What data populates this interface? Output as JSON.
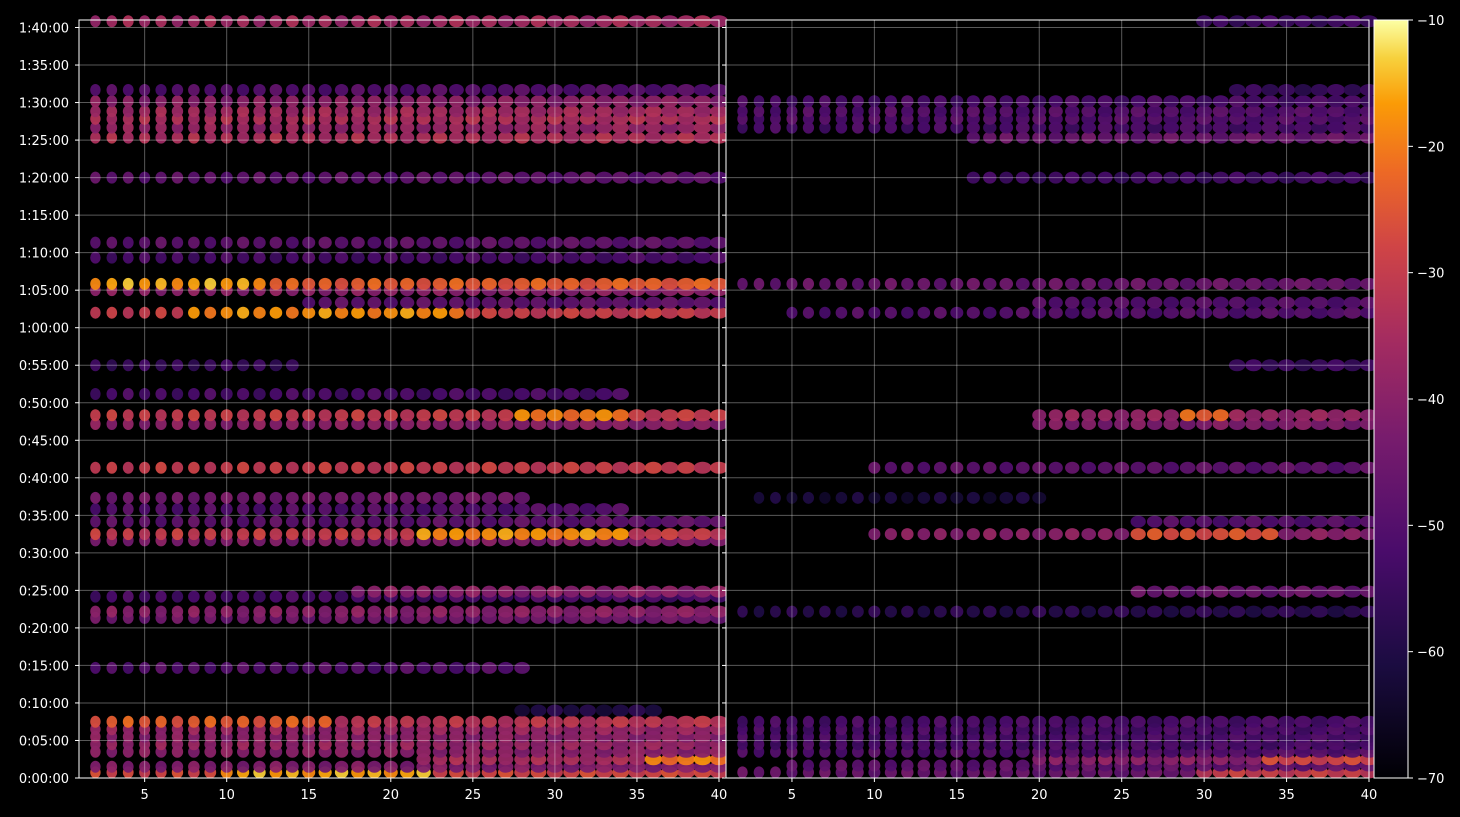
{
  "chart_data": [
    {
      "type": "heatmap",
      "panel": "left",
      "xlim": [
        1,
        40
      ],
      "ylim_seconds": [
        0,
        6060
      ],
      "x_ticks": [
        5,
        10,
        15,
        20,
        25,
        30,
        35,
        40
      ],
      "y_ticks": [
        "0:00:00",
        "0:05:00",
        "0:10:00",
        "0:15:00",
        "0:20:00",
        "0:25:00",
        "0:30:00",
        "0:35:00",
        "0:40:00",
        "0:45:00",
        "0:50:00",
        "0:55:00",
        "1:00:00",
        "1:05:00",
        "1:10:00",
        "1:15:00",
        "1:20:00",
        "1:25:00",
        "1:30:00",
        "1:35:00",
        "1:40:00"
      ],
      "grid": true,
      "colormap": "inferno",
      "note": "rows: time in seconds; x ranges in data units; level in dB",
      "rows": [
        {
          "t": 45,
          "x": [
            2,
            40
          ],
          "level": -28,
          "peak": -16,
          "peak_x": [
            10,
            22
          ]
        },
        {
          "t": 90,
          "x": [
            2,
            40
          ],
          "level": -42
        },
        {
          "t": 150,
          "x": [
            22,
            40
          ],
          "level": -35,
          "peak": -20,
          "peak_x": [
            36,
            40
          ]
        },
        {
          "t": 210,
          "x": [
            2,
            40
          ],
          "level": -40
        },
        {
          "t": 270,
          "x": [
            2,
            40
          ],
          "level": -38
        },
        {
          "t": 330,
          "x": [
            2,
            40
          ],
          "level": -40
        },
        {
          "t": 390,
          "x": [
            2,
            40
          ],
          "level": -38
        },
        {
          "t": 450,
          "x": [
            2,
            40
          ],
          "level": -32,
          "peak": -24,
          "peak_x": [
            2,
            16
          ]
        },
        {
          "t": 540,
          "x": [
            28,
            36
          ],
          "level": -60
        },
        {
          "t": 880,
          "x": [
            2,
            28
          ],
          "level": -50
        },
        {
          "t": 1280,
          "x": [
            2,
            40
          ],
          "level": -45
        },
        {
          "t": 1330,
          "x": [
            2,
            40
          ],
          "level": -40
        },
        {
          "t": 1450,
          "x": [
            2,
            40
          ],
          "level": -52
        },
        {
          "t": 1490,
          "x": [
            18,
            40
          ],
          "level": -40
        },
        {
          "t": 1900,
          "x": [
            2,
            40
          ],
          "level": -42
        },
        {
          "t": 1950,
          "x": [
            2,
            40
          ],
          "level": -30,
          "peak": -18,
          "peak_x": [
            22,
            34
          ]
        },
        {
          "t": 2050,
          "x": [
            2,
            40
          ],
          "level": -48
        },
        {
          "t": 2150,
          "x": [
            2,
            34
          ],
          "level": -50
        },
        {
          "t": 2240,
          "x": [
            2,
            28
          ],
          "level": -44
        },
        {
          "t": 2480,
          "x": [
            2,
            40
          ],
          "level": -30
        },
        {
          "t": 2830,
          "x": [
            2,
            40
          ],
          "level": -40
        },
        {
          "t": 2900,
          "x": [
            2,
            40
          ],
          "level": -30,
          "peak": -20,
          "peak_x": [
            28,
            34
          ]
        },
        {
          "t": 3070,
          "x": [
            2,
            34
          ],
          "level": -52
        },
        {
          "t": 3300,
          "x": [
            2,
            14
          ],
          "level": -55
        },
        {
          "t": 3720,
          "x": [
            2,
            40
          ],
          "level": -30,
          "peak": -18,
          "peak_x": [
            8,
            24
          ]
        },
        {
          "t": 3800,
          "x": [
            15,
            40
          ],
          "level": -48
        },
        {
          "t": 3900,
          "x": [
            2,
            40
          ],
          "level": -40
        },
        {
          "t": 3950,
          "x": [
            2,
            40
          ],
          "level": -24,
          "peak": -16,
          "peak_x": [
            2,
            12
          ]
        },
        {
          "t": 4160,
          "x": [
            2,
            40
          ],
          "level": -52
        },
        {
          "t": 4280,
          "x": [
            2,
            40
          ],
          "level": -48
        },
        {
          "t": 4800,
          "x": [
            2,
            40
          ],
          "level": -48
        },
        {
          "t": 5120,
          "x": [
            2,
            40
          ],
          "level": -34
        },
        {
          "t": 5200,
          "x": [
            2,
            40
          ],
          "level": -38
        },
        {
          "t": 5270,
          "x": [
            2,
            40
          ],
          "level": -34
        },
        {
          "t": 5330,
          "x": [
            2,
            40
          ],
          "level": -36
        },
        {
          "t": 5410,
          "x": [
            2,
            40
          ],
          "level": -40
        },
        {
          "t": 5500,
          "x": [
            2,
            40
          ],
          "level": -50
        },
        {
          "t": 6050,
          "x": [
            2,
            40
          ],
          "level": -36
        }
      ]
    },
    {
      "type": "heatmap",
      "panel": "right",
      "xlim": [
        1,
        40
      ],
      "ylim_seconds": [
        0,
        6060
      ],
      "x_ticks": [
        5,
        10,
        15,
        20,
        25,
        30,
        35,
        40
      ],
      "grid": true,
      "colormap": "inferno",
      "rows": [
        {
          "t": 45,
          "x": [
            2,
            40
          ],
          "level": -46,
          "peak": -30,
          "peak_x": [
            30,
            40
          ]
        },
        {
          "t": 100,
          "x": [
            5,
            40
          ],
          "level": -48
        },
        {
          "t": 150,
          "x": [
            20,
            40
          ],
          "level": -40,
          "peak": -28,
          "peak_x": [
            34,
            40
          ]
        },
        {
          "t": 210,
          "x": [
            2,
            40
          ],
          "level": -50
        },
        {
          "t": 270,
          "x": [
            2,
            40
          ],
          "level": -52
        },
        {
          "t": 330,
          "x": [
            2,
            40
          ],
          "level": -52
        },
        {
          "t": 390,
          "x": [
            2,
            40
          ],
          "level": -52
        },
        {
          "t": 450,
          "x": [
            2,
            40
          ],
          "level": -52
        },
        {
          "t": 1330,
          "x": [
            2,
            40
          ],
          "level": -58
        },
        {
          "t": 1490,
          "x": [
            26,
            40
          ],
          "level": -46
        },
        {
          "t": 1950,
          "x": [
            10,
            40
          ],
          "level": -40,
          "peak": -26,
          "peak_x": [
            26,
            34
          ]
        },
        {
          "t": 2050,
          "x": [
            26,
            40
          ],
          "level": -50
        },
        {
          "t": 2240,
          "x": [
            3,
            20
          ],
          "level": -62
        },
        {
          "t": 2480,
          "x": [
            10,
            40
          ],
          "level": -48
        },
        {
          "t": 2830,
          "x": [
            20,
            40
          ],
          "level": -42
        },
        {
          "t": 2900,
          "x": [
            20,
            40
          ],
          "level": -38,
          "peak": -22,
          "peak_x": [
            29,
            31
          ]
        },
        {
          "t": 3300,
          "x": [
            32,
            40
          ],
          "level": -55
        },
        {
          "t": 3720,
          "x": [
            5,
            40
          ],
          "level": -50
        },
        {
          "t": 3800,
          "x": [
            20,
            40
          ],
          "level": -50
        },
        {
          "t": 3950,
          "x": [
            2,
            40
          ],
          "level": -46
        },
        {
          "t": 4800,
          "x": [
            16,
            40
          ],
          "level": -54
        },
        {
          "t": 5120,
          "x": [
            16,
            40
          ],
          "level": -46
        },
        {
          "t": 5200,
          "x": [
            2,
            40
          ],
          "level": -52
        },
        {
          "t": 5270,
          "x": [
            2,
            40
          ],
          "level": -50
        },
        {
          "t": 5330,
          "x": [
            2,
            40
          ],
          "level": -50
        },
        {
          "t": 5410,
          "x": [
            2,
            40
          ],
          "level": -52
        },
        {
          "t": 5500,
          "x": [
            32,
            40
          ],
          "level": -56
        },
        {
          "t": 6050,
          "x": [
            30,
            40
          ],
          "level": -54
        }
      ]
    },
    {
      "type": "colorbar",
      "range": [
        -70,
        -10
      ],
      "ticks": [
        "−10",
        "−20",
        "−30",
        "−40",
        "−50",
        "−60",
        "−70"
      ],
      "tick_values": [
        -10,
        -20,
        -30,
        -40,
        -50,
        -60,
        -70
      ],
      "colormap": "inferno"
    }
  ]
}
